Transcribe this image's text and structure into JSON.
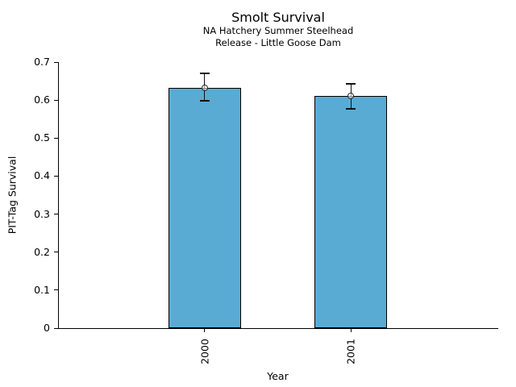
{
  "chart_data": {
    "type": "bar",
    "title": "Smolt Survival",
    "subtitle_lines": [
      "NA Hatchery Summer Steelhead",
      "Release - Little Goose Dam"
    ],
    "xlabel": "Year",
    "ylabel": "PIT-Tag Survival",
    "categories": [
      "2000",
      "2001"
    ],
    "values": [
      0.633,
      0.611
    ],
    "error_low": [
      0.598,
      0.577
    ],
    "error_high": [
      0.67,
      0.643
    ],
    "ylim": [
      0,
      0.7
    ],
    "ytick_values": [
      0,
      0.1,
      0.2,
      0.3,
      0.4,
      0.5,
      0.6,
      0.7
    ],
    "ytick_labels": [
      "0",
      "0.1",
      "0.2",
      "0.3",
      "0.4",
      "0.5",
      "0.6",
      "0.7"
    ],
    "xtick_rotation_deg": 90,
    "bar_color": "#5aabd4",
    "bar_edge_color": "#000000",
    "marker": "open-circle",
    "grid": false,
    "legend": null,
    "background_color": "#ffffff"
  }
}
